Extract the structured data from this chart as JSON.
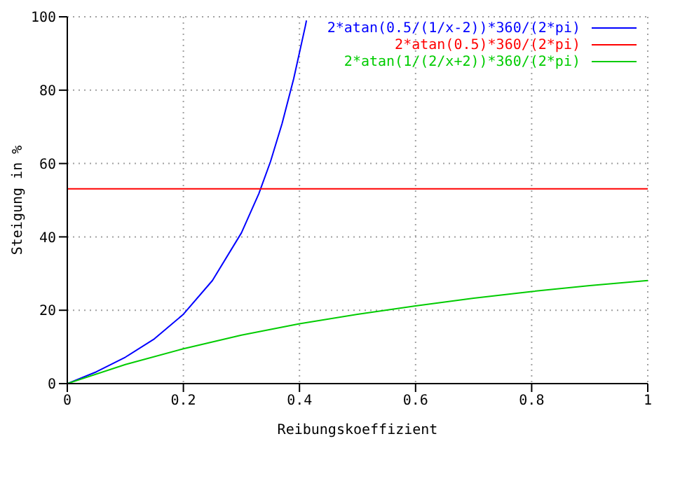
{
  "chart_data": {
    "type": "line",
    "xlabel": "Reibungskoeffizient",
    "ylabel": "Steigung in %",
    "xlim": [
      0,
      1
    ],
    "ylim": [
      0,
      100
    ],
    "xticks": [
      0,
      0.2,
      0.4,
      0.6,
      0.8,
      1
    ],
    "yticks": [
      0,
      20,
      40,
      60,
      80,
      100
    ],
    "grid": true,
    "legend": "top right",
    "marker": "none",
    "line_style": "solid",
    "series": [
      {
        "name": "2*atan(0.5/(1/x-2))*360/(2*pi)",
        "color": "#0000ff",
        "x": [
          0,
          0.05,
          0.1,
          0.15,
          0.2,
          0.25,
          0.3,
          0.33,
          0.35,
          0.37,
          0.39,
          0.41,
          0.412
        ],
        "values": [
          0,
          3.2,
          7.2,
          12.2,
          18.9,
          28.1,
          41.1,
          51.8,
          60.5,
          70.9,
          83.1,
          97.4,
          99
        ]
      },
      {
        "name": "2*atan(0.5)*360/(2*pi)",
        "color": "#ff0000",
        "x": [
          0,
          1
        ],
        "values": [
          53.1,
          53.1
        ]
      },
      {
        "name": "2*atan(1/(2/x+2))*360/(2*pi)",
        "color": "#00cc00",
        "x": [
          0,
          0.1,
          0.2,
          0.3,
          0.4,
          0.5,
          0.6,
          0.7,
          0.8,
          0.9,
          1
        ],
        "values": [
          0,
          5.2,
          9.5,
          13.2,
          16.3,
          18.9,
          21.2,
          23.3,
          25.1,
          26.7,
          28.1
        ]
      }
    ]
  }
}
